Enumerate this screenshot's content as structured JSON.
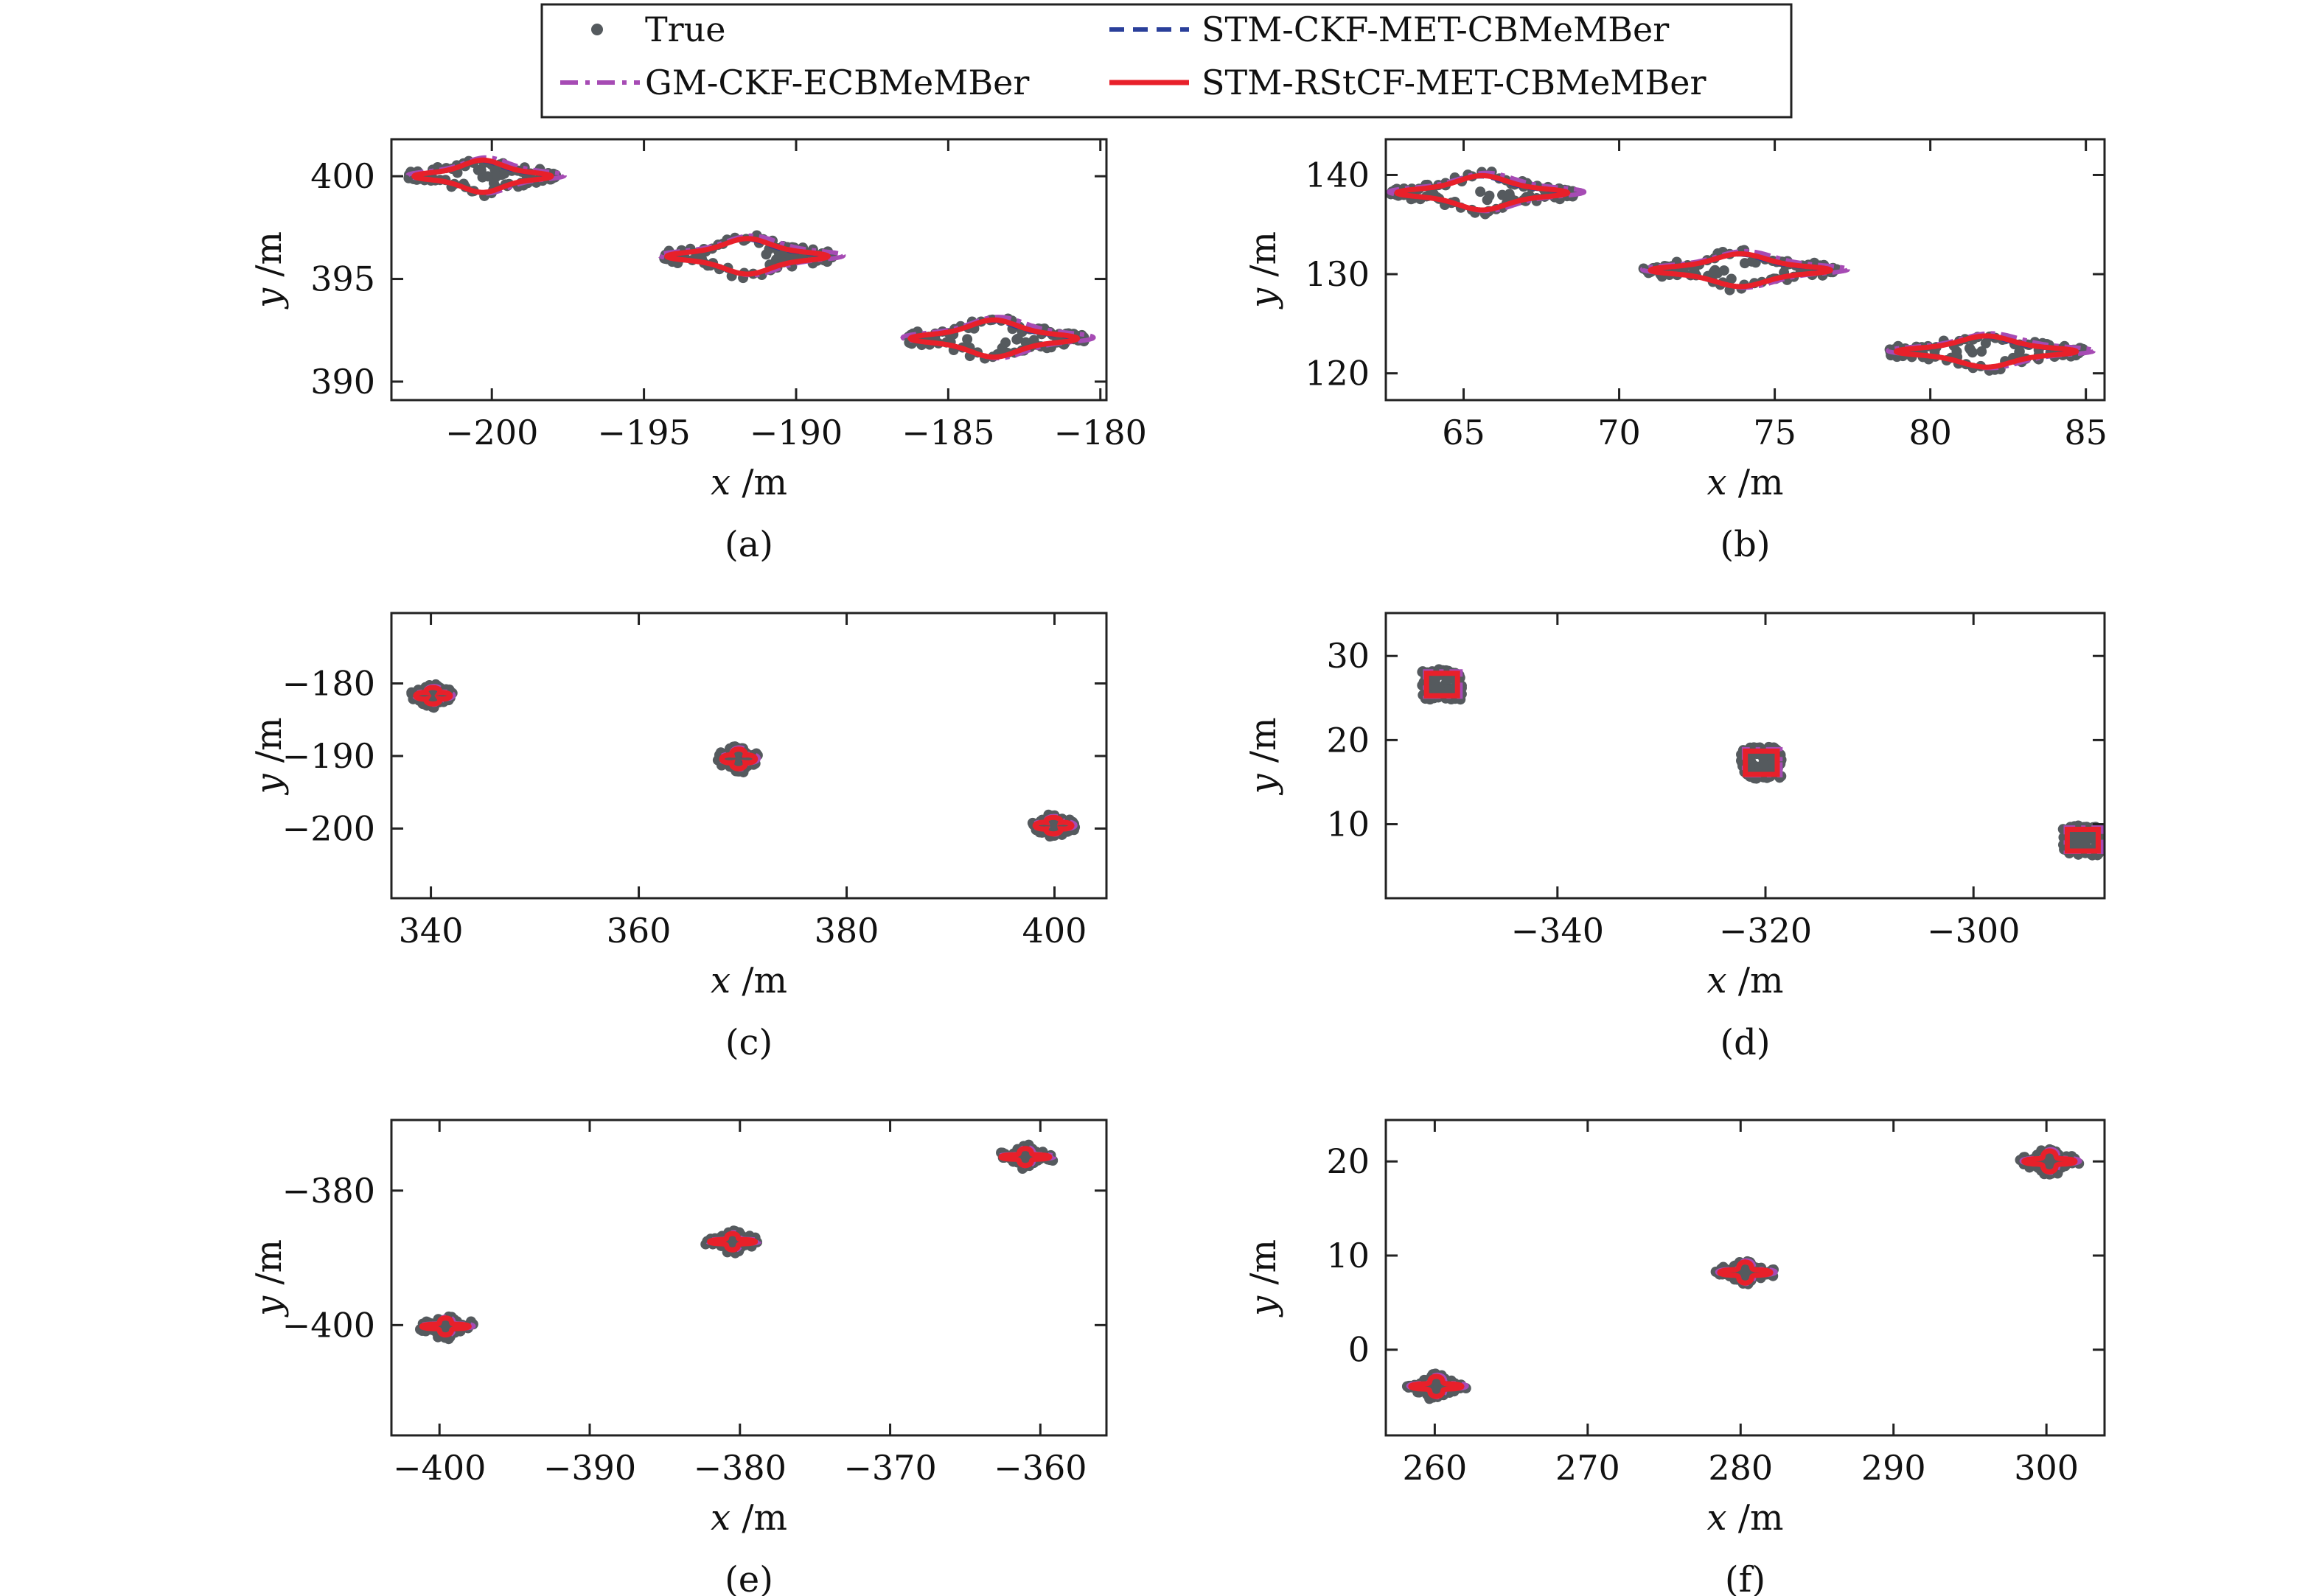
{
  "figure": {
    "legend_position": "top-center",
    "colors": {
      "true": "#555a5e",
      "gm_ckf": "#a64bb4",
      "stm_ckf": "#2a3f9a",
      "stm_rstcf": "#e8202a"
    }
  },
  "legend": [
    {
      "key": "true",
      "label": "True",
      "style": "dots"
    },
    {
      "key": "stm_ckf",
      "label": "STM-CKF-MET-CBMeMBer",
      "style": "dashed"
    },
    {
      "key": "gm_ckf",
      "label": "GM-CKF-ECBMeMBer",
      "style": "dashdot"
    },
    {
      "key": "stm_rstcf",
      "label": "STM-RStCF-MET-CBMeMBer",
      "style": "solid"
    }
  ],
  "chart_data": [
    {
      "type": "scatter",
      "panel_label": "(a)",
      "shape": "plane",
      "xlabel": "x /m",
      "ylabel": "y /m",
      "xlim": [
        -203.3,
        -179.8
      ],
      "ylim": [
        389.1,
        401.8
      ],
      "xticks": [
        -200,
        -195,
        -190,
        -185,
        -180
      ],
      "yticks": [
        390,
        395,
        400
      ],
      "targets": [
        {
          "cx": -200.3,
          "cy": 400.0,
          "w": 4.6,
          "h": 2.0
        },
        {
          "cx": -191.6,
          "cy": 396.1,
          "w": 5.4,
          "h": 2.2
        },
        {
          "cx": -183.5,
          "cy": 392.1,
          "w": 5.6,
          "h": 2.3
        }
      ]
    },
    {
      "type": "scatter",
      "panel_label": "(b)",
      "shape": "plane",
      "xlabel": "x /m",
      "ylabel": "y /m",
      "xlim": [
        62.5,
        85.6
      ],
      "ylim": [
        117.3,
        143.6
      ],
      "xticks": [
        65,
        70,
        75,
        80,
        85
      ],
      "yticks": [
        120,
        130,
        140
      ],
      "targets": [
        {
          "cx": 65.6,
          "cy": 138.2,
          "w": 5.6,
          "h": 4.4
        },
        {
          "cx": 73.9,
          "cy": 130.4,
          "w": 5.9,
          "h": 4.2
        },
        {
          "cx": 81.8,
          "cy": 122.2,
          "w": 5.9,
          "h": 4.0
        }
      ]
    },
    {
      "type": "scatter",
      "panel_label": "(c)",
      "shape": "star",
      "xlabel": "x /m",
      "ylabel": "y /m",
      "xlim": [
        336.2,
        405.0
      ],
      "ylim": [
        -209.6,
        -170.3
      ],
      "xticks": [
        340,
        360,
        380,
        400
      ],
      "yticks": [
        -180,
        -190,
        -200
      ],
      "targets": [
        {
          "cx": 340.2,
          "cy": -181.7,
          "w": 3.4,
          "h": 2.6
        },
        {
          "cx": 369.6,
          "cy": -190.4,
          "w": 3.3,
          "h": 3.1
        },
        {
          "cx": 399.9,
          "cy": -199.6,
          "w": 3.6,
          "h": 2.6
        }
      ]
    },
    {
      "type": "scatter",
      "panel_label": "(d)",
      "shape": "square",
      "xlabel": "x /m",
      "ylabel": "y /m",
      "xlim": [
        -356.5,
        -287.4
      ],
      "ylim": [
        1.2,
        35.1
      ],
      "xticks": [
        -340,
        -320,
        -300
      ],
      "yticks": [
        10,
        20,
        30
      ],
      "targets": [
        {
          "cx": -351.1,
          "cy": 26.6,
          "w": 3.3,
          "h": 3.0
        },
        {
          "cx": -320.4,
          "cy": 17.3,
          "w": 3.4,
          "h": 3.1
        },
        {
          "cx": -289.5,
          "cy": 8.1,
          "w": 3.3,
          "h": 2.9
        }
      ]
    },
    {
      "type": "scatter",
      "panel_label": "(e)",
      "shape": "cross",
      "xlabel": "x /m",
      "ylabel": "y /m",
      "xlim": [
        -403.2,
        -355.6
      ],
      "ylim": [
        -416.4,
        -369.5
      ],
      "xticks": [
        -400,
        -390,
        -380,
        -370,
        -360
      ],
      "yticks": [
        -380,
        -400
      ],
      "targets": [
        {
          "cx": -399.6,
          "cy": -400.2,
          "w": 3.2,
          "h": 2.6
        },
        {
          "cx": -380.5,
          "cy": -387.6,
          "w": 3.1,
          "h": 2.5
        },
        {
          "cx": -361.0,
          "cy": -375.0,
          "w": 3.3,
          "h": 2.6
        }
      ]
    },
    {
      "type": "scatter",
      "panel_label": "(f)",
      "shape": "cross",
      "xlabel": "x /m",
      "ylabel": "y /m",
      "xlim": [
        256.8,
        303.8
      ],
      "ylim": [
        -9.1,
        24.4
      ],
      "xticks": [
        260,
        270,
        280,
        290,
        300
      ],
      "yticks": [
        0,
        10,
        20
      ],
      "targets": [
        {
          "cx": 260.1,
          "cy": -3.9,
          "w": 3.4,
          "h": 2.2
        },
        {
          "cx": 280.3,
          "cy": 8.2,
          "w": 3.4,
          "h": 2.3
        },
        {
          "cx": 300.2,
          "cy": 20.0,
          "w": 3.4,
          "h": 2.3
        }
      ]
    }
  ]
}
